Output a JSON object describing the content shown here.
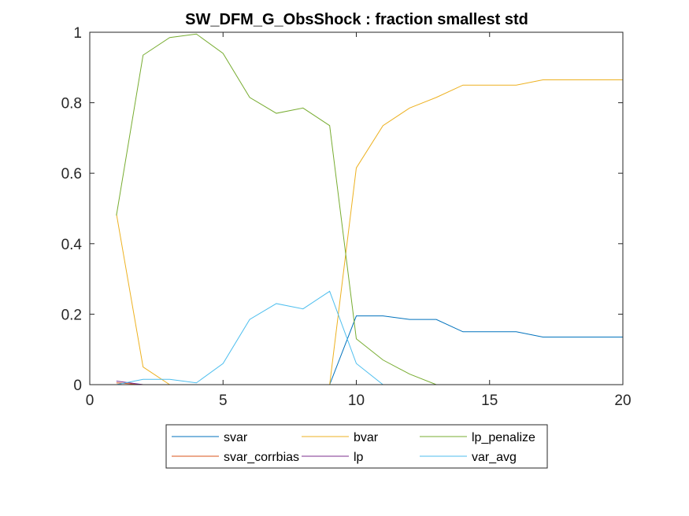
{
  "chart_data": {
    "type": "line",
    "title": "SW_DFM_G_ObsShock : fraction smallest std",
    "xlabel": "",
    "ylabel": "",
    "xlim": [
      0,
      20
    ],
    "ylim": [
      0,
      1
    ],
    "xticks": [
      "0",
      "5",
      "10",
      "15",
      "20"
    ],
    "yticks": [
      "0",
      "0.2",
      "0.4",
      "0.6",
      "0.8",
      "1"
    ],
    "grid": false,
    "legend_position": "bottom-outside",
    "x": [
      1,
      2,
      3,
      4,
      5,
      6,
      7,
      8,
      9,
      10,
      11,
      12,
      13,
      14,
      15,
      16,
      17,
      18,
      19,
      20
    ],
    "series": [
      {
        "name": "svar",
        "color": "#0072BD",
        "values": [
          0,
          0,
          0,
          0,
          0,
          0,
          0,
          0,
          0,
          0.195,
          0.195,
          0.185,
          0.185,
          0.15,
          0.15,
          0.15,
          0.135,
          0.135,
          0.135,
          0.135
        ]
      },
      {
        "name": "bvar",
        "color": "#EDB120",
        "values": [
          0.485,
          0.05,
          0,
          0,
          0,
          0,
          0,
          0,
          0,
          0.615,
          0.735,
          0.785,
          0.815,
          0.85,
          0.85,
          0.85,
          0.865,
          0.865,
          0.865,
          0.865
        ]
      },
      {
        "name": "lp_penalize",
        "color": "#77AC30",
        "values": [
          0.48,
          0.935,
          0.985,
          0.995,
          0.94,
          0.815,
          0.77,
          0.785,
          0.735,
          0.13,
          0.07,
          0.03,
          0,
          0,
          0,
          0,
          0,
          0,
          0,
          0
        ]
      },
      {
        "name": "svar_corrbias",
        "color": "#D95319",
        "values": [
          0.005,
          0,
          0,
          0,
          0,
          0,
          0,
          0,
          0,
          0,
          0,
          0,
          0,
          0,
          0,
          0,
          0,
          0,
          0,
          0
        ]
      },
      {
        "name": "lp",
        "color": "#7E2F8E",
        "values": [
          0.01,
          0,
          0,
          0,
          0,
          0,
          0,
          0,
          0,
          0,
          0,
          0,
          0,
          0,
          0,
          0,
          0,
          0,
          0,
          0
        ]
      },
      {
        "name": "var_avg",
        "color": "#4DBEEE",
        "values": [
          0,
          0.015,
          0.015,
          0.005,
          0.06,
          0.185,
          0.23,
          0.215,
          0.265,
          0.06,
          0,
          0,
          0,
          0,
          0,
          0,
          0,
          0,
          0,
          0
        ]
      }
    ]
  }
}
